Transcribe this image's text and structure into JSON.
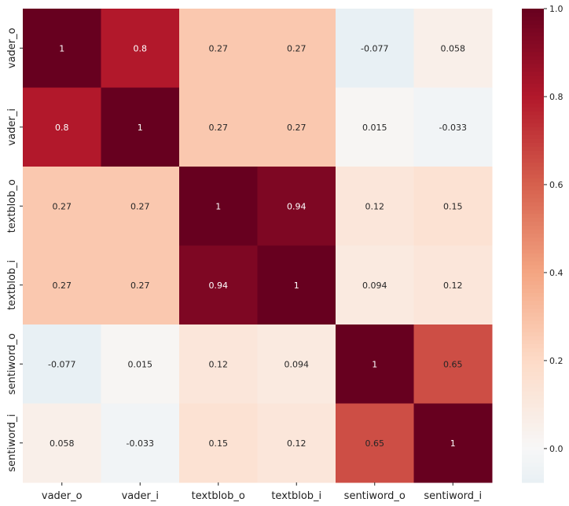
{
  "chart_data": {
    "type": "heatmap",
    "title": "",
    "xlabel": "",
    "ylabel": "",
    "x_categories": [
      "vader_o",
      "vader_i",
      "textblob_o",
      "textblob_i",
      "sentiword_o",
      "sentiword_i"
    ],
    "y_categories": [
      "vader_o",
      "vader_i",
      "textblob_o",
      "textblob_i",
      "sentiword_o",
      "sentiword_i"
    ],
    "values": [
      [
        1,
        0.8,
        0.27,
        0.27,
        -0.077,
        0.058
      ],
      [
        0.8,
        1,
        0.27,
        0.27,
        0.015,
        -0.033
      ],
      [
        0.27,
        0.27,
        1,
        0.94,
        0.12,
        0.15
      ],
      [
        0.27,
        0.27,
        0.94,
        1,
        0.094,
        0.12
      ],
      [
        -0.077,
        0.015,
        0.12,
        0.094,
        1,
        0.65
      ],
      [
        0.058,
        -0.033,
        0.15,
        0.12,
        0.65,
        1
      ]
    ],
    "annotations": [
      [
        "1",
        "0.8",
        "0.27",
        "0.27",
        "-0.077",
        "0.058"
      ],
      [
        "0.8",
        "1",
        "0.27",
        "0.27",
        "0.015",
        "-0.033"
      ],
      [
        "0.27",
        "0.27",
        "1",
        "0.94",
        "0.12",
        "0.15"
      ],
      [
        "0.27",
        "0.27",
        "0.94",
        "1",
        "0.094",
        "0.12"
      ],
      [
        "-0.077",
        "0.015",
        "0.12",
        "0.094",
        "1",
        "0.65"
      ],
      [
        "0.058",
        "-0.033",
        "0.15",
        "0.12",
        "0.65",
        "1"
      ]
    ],
    "colormap": "RdBu_r",
    "color_range": [
      -0.077,
      1
    ],
    "colorbar": {
      "ticks": [
        0.0,
        0.2,
        0.4,
        0.6,
        0.8,
        1.0
      ],
      "tick_labels": [
        "0.0",
        "0.2",
        "0.4",
        "0.6",
        "0.8",
        "1.0"
      ]
    },
    "legend": "right"
  }
}
